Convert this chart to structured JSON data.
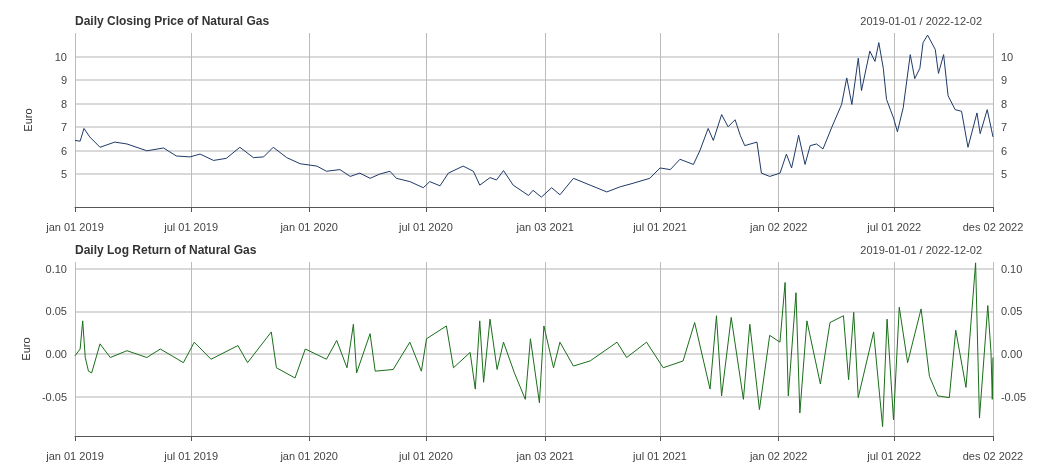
{
  "chart_data": [
    {
      "type": "line",
      "title": "Daily Closing Price of Natural Gas",
      "subtitle": "2019-01-01 / 2022-12-02",
      "ylabel": "Euro",
      "grid": true,
      "xlim": [
        "2019-01-01",
        "2022-12-02"
      ],
      "xticks": [
        {
          "value": "2019-01-01",
          "label": "jan 01 2019"
        },
        {
          "value": "2019-07-01",
          "label": "jul 01 2019"
        },
        {
          "value": "2020-01-01",
          "label": "jan 01 2020"
        },
        {
          "value": "2020-07-01",
          "label": "jul 01 2020"
        },
        {
          "value": "2021-01-03",
          "label": "jan 03 2021"
        },
        {
          "value": "2021-07-01",
          "label": "jul 01 2021"
        },
        {
          "value": "2022-01-02",
          "label": "jan 02 2022"
        },
        {
          "value": "2022-07-01",
          "label": "jul 01 2022"
        },
        {
          "value": "2022-12-02",
          "label": "des 02 2022"
        }
      ],
      "ylim": [
        3.6,
        11.0
      ],
      "yticks": [
        5,
        6,
        7,
        8,
        9,
        10
      ],
      "y2lim": [
        3.6,
        11.0
      ],
      "y2ticks": [
        5,
        6,
        7,
        8,
        9,
        10
      ],
      "series": [
        {
          "color": "#1f3a68",
          "x": [
            "2019-01-01",
            "2019-01-09",
            "2019-01-15",
            "2019-01-24",
            "2019-02-09",
            "2019-03-04",
            "2019-03-23",
            "2019-04-23",
            "2019-05-19",
            "2019-06-08",
            "2019-06-29",
            "2019-07-15",
            "2019-08-05",
            "2019-08-25",
            "2019-09-15",
            "2019-10-06",
            "2019-10-22",
            "2019-11-06",
            "2019-11-27",
            "2019-12-18",
            "2020-01-13",
            "2020-01-28",
            "2020-02-18",
            "2020-03-05",
            "2020-03-20",
            "2020-04-05",
            "2020-04-20",
            "2020-05-06",
            "2020-05-16",
            "2020-06-06",
            "2020-06-27",
            "2020-07-07",
            "2020-07-23",
            "2020-08-05",
            "2020-08-28",
            "2020-09-13",
            "2020-09-23",
            "2020-10-09",
            "2020-10-19",
            "2020-10-30",
            "2020-11-14",
            "2020-12-08",
            "2020-12-15",
            "2020-12-28",
            "2021-01-13",
            "2021-01-26",
            "2021-02-16",
            "2021-03-14",
            "2021-04-09",
            "2021-04-30",
            "2021-05-20",
            "2021-06-15",
            "2021-07-01",
            "2021-07-17",
            "2021-08-01",
            "2021-08-22",
            "2021-09-01",
            "2021-09-14",
            "2021-09-22",
            "2021-10-05",
            "2021-10-15",
            "2021-10-26",
            "2021-11-03",
            "2021-11-10",
            "2021-11-29",
            "2021-12-06",
            "2021-12-19",
            "2022-01-04",
            "2022-01-14",
            "2022-01-22",
            "2022-02-02",
            "2022-02-12",
            "2022-02-20",
            "2022-03-02",
            "2022-03-12",
            "2022-03-26",
            "2022-04-10",
            "2022-04-18",
            "2022-04-26",
            "2022-05-06",
            "2022-05-11",
            "2022-05-24",
            "2022-06-01",
            "2022-06-07",
            "2022-06-14",
            "2022-06-19",
            "2022-06-30",
            "2022-07-06",
            "2022-07-15",
            "2022-07-26",
            "2022-08-02",
            "2022-08-10",
            "2022-08-15",
            "2022-08-22",
            "2022-09-03",
            "2022-09-08",
            "2022-09-16",
            "2022-09-23",
            "2022-10-04",
            "2022-10-14",
            "2022-10-24",
            "2022-11-07",
            "2022-11-12",
            "2022-11-23",
            "2022-12-02"
          ],
          "values": [
            6.43,
            6.4,
            6.94,
            6.58,
            6.14,
            6.36,
            6.28,
            5.99,
            6.11,
            5.77,
            5.73,
            5.85,
            5.58,
            5.67,
            6.14,
            5.7,
            5.73,
            6.14,
            5.7,
            5.44,
            5.34,
            5.12,
            5.19,
            4.9,
            5.04,
            4.82,
            5.0,
            5.12,
            4.82,
            4.68,
            4.42,
            4.68,
            4.5,
            5.04,
            5.34,
            5.12,
            4.53,
            4.85,
            4.75,
            5.15,
            4.53,
            4.09,
            4.31,
            4.02,
            4.42,
            4.12,
            4.82,
            4.53,
            4.24,
            4.46,
            4.61,
            4.82,
            5.26,
            5.19,
            5.63,
            5.41,
            5.99,
            6.94,
            6.43,
            7.53,
            7.01,
            7.31,
            6.65,
            6.21,
            6.36,
            5.04,
            4.9,
            5.04,
            5.85,
            5.26,
            6.65,
            5.41,
            6.21,
            6.28,
            6.07,
            7.01,
            7.96,
            9.09,
            7.96,
            9.93,
            8.55,
            10.23,
            9.79,
            10.59,
            9.5,
            8.18,
            7.38,
            6.8,
            7.82,
            10.08,
            9.06,
            9.5,
            10.59,
            10.91,
            10.3,
            9.28,
            10.08,
            8.33,
            7.74,
            7.67,
            6.14,
            7.6,
            6.72,
            7.74,
            6.58
          ]
        }
      ]
    },
    {
      "type": "line",
      "title": "Daily Log Return of Natural Gas",
      "subtitle": "2019-01-01 / 2022-12-02",
      "ylabel": "Euro",
      "grid": true,
      "xlim": [
        "2019-01-01",
        "2022-12-02"
      ],
      "xticks": [
        {
          "value": "2019-01-01",
          "label": "jan 01 2019"
        },
        {
          "value": "2019-07-01",
          "label": "jul 01 2019"
        },
        {
          "value": "2020-01-01",
          "label": "jan 01 2020"
        },
        {
          "value": "2020-07-01",
          "label": "jul 01 2020"
        },
        {
          "value": "2021-01-03",
          "label": "jan 03 2021"
        },
        {
          "value": "2021-07-01",
          "label": "jul 01 2021"
        },
        {
          "value": "2022-01-02",
          "label": "jan 02 2022"
        },
        {
          "value": "2022-07-01",
          "label": "jul 01 2022"
        },
        {
          "value": "2022-12-02",
          "label": "des 02 2022"
        }
      ],
      "ylim": [
        -0.096,
        0.108
      ],
      "yticks": [
        {
          "value": -0.05,
          "label": "-0.05"
        },
        {
          "value": 0,
          "label": "0.00"
        },
        {
          "value": 0.05,
          "label": "0.05"
        },
        {
          "value": 0.1,
          "label": "0.10"
        }
      ],
      "y2lim": [
        -0.096,
        0.108
      ],
      "y2ticks": [
        {
          "value": -0.05,
          "label": "-0.05"
        },
        {
          "value": 0,
          "label": "0.00"
        },
        {
          "value": 0.05,
          "label": "0.05"
        },
        {
          "value": 0.1,
          "label": "0.10"
        }
      ],
      "series": [
        {
          "color": "#1a6e1a",
          "x": [
            "2019-01-01",
            "2019-01-09",
            "2019-01-13",
            "2019-01-17",
            "2019-01-22",
            "2019-01-27",
            "2019-02-09",
            "2019-02-25",
            "2019-03-23",
            "2019-04-23",
            "2019-05-14",
            "2019-06-19",
            "2019-07-06",
            "2019-08-01",
            "2019-09-12",
            "2019-09-27",
            "2019-11-03",
            "2019-11-11",
            "2019-12-10",
            "2019-12-26",
            "2020-01-28",
            "2020-02-13",
            "2020-02-29",
            "2020-03-10",
            "2020-03-15",
            "2020-04-05",
            "2020-04-13",
            "2020-05-11",
            "2020-06-06",
            "2020-06-24",
            "2020-07-02",
            "2020-08-02",
            "2020-08-13",
            "2020-09-08",
            "2020-09-16",
            "2020-09-23",
            "2020-09-29",
            "2020-10-09",
            "2020-10-20",
            "2020-10-30",
            "2020-11-16",
            "2020-12-03",
            "2020-12-11",
            "2020-12-25",
            "2021-01-01",
            "2021-01-16",
            "2021-01-26",
            "2021-02-16",
            "2021-03-14",
            "2021-04-25",
            "2021-05-10",
            "2021-06-10",
            "2021-07-06",
            "2021-08-06",
            "2021-08-24",
            "2021-09-17",
            "2021-09-27",
            "2021-10-05",
            "2021-10-20",
            "2021-11-08",
            "2021-11-18",
            "2021-12-03",
            "2021-12-19",
            "2022-01-04",
            "2022-01-12",
            "2022-01-17",
            "2022-01-29",
            "2022-02-04",
            "2022-02-15",
            "2022-03-08",
            "2022-03-23",
            "2022-04-13",
            "2022-04-21",
            "2022-04-29",
            "2022-05-06",
            "2022-05-30",
            "2022-06-13",
            "2022-06-20",
            "2022-06-30",
            "2022-07-09",
            "2022-07-22",
            "2022-08-12",
            "2022-08-25",
            "2022-09-07",
            "2022-09-25",
            "2022-10-05",
            "2022-10-21",
            "2022-10-29",
            "2022-11-05",
            "2022-11-11",
            "2022-11-21",
            "2022-11-24",
            "2022-11-29",
            "2022-12-01",
            "2022-12-02"
          ],
          "values": [
            -0.002,
            0.006,
            0.039,
            -0.004,
            -0.02,
            -0.022,
            0.012,
            -0.004,
            0.004,
            -0.004,
            0.006,
            -0.01,
            0.014,
            -0.006,
            0.01,
            -0.01,
            0.026,
            -0.016,
            -0.028,
            0.006,
            -0.006,
            0.016,
            -0.016,
            0.035,
            -0.022,
            0.024,
            -0.02,
            -0.018,
            0.014,
            -0.02,
            0.018,
            0.033,
            -0.016,
            0.002,
            -0.041,
            0.039,
            -0.033,
            0.041,
            -0.018,
            0.014,
            -0.022,
            -0.053,
            0.018,
            -0.057,
            0.033,
            -0.016,
            0.014,
            -0.014,
            -0.008,
            0.014,
            -0.004,
            0.014,
            -0.016,
            -0.008,
            0.037,
            -0.041,
            0.045,
            -0.049,
            0.043,
            -0.053,
            0.035,
            -0.065,
            0.022,
            0.014,
            0.084,
            -0.049,
            0.072,
            -0.069,
            0.039,
            -0.035,
            0.037,
            0.045,
            -0.03,
            0.049,
            -0.051,
            0.026,
            -0.085,
            0.041,
            -0.077,
            0.055,
            -0.01,
            0.053,
            -0.026,
            -0.049,
            -0.051,
            0.028,
            -0.039,
            0.039,
            0.107,
            -0.075,
            0.026,
            0.057,
            0.002,
            -0.053,
            -0.004
          ]
        }
      ]
    }
  ]
}
